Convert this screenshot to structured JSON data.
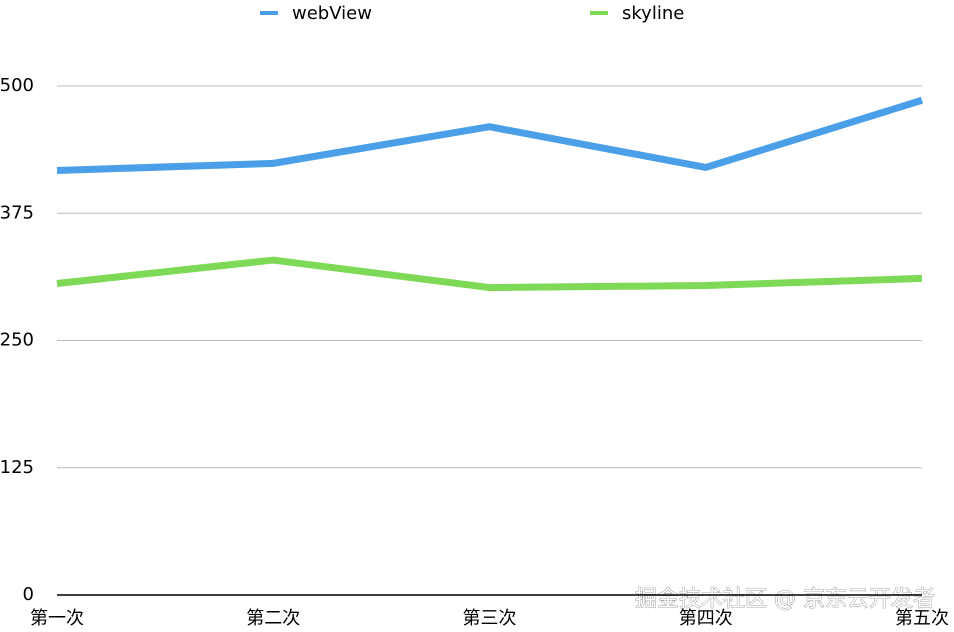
{
  "chart_data": {
    "type": "line",
    "categories": [
      "第一次",
      "第二次",
      "第三次",
      "第四次",
      "第五次"
    ],
    "series": [
      {
        "name": "webView",
        "color": "#4a9fe8",
        "values": [
          417,
          424,
          460,
          420,
          486
        ]
      },
      {
        "name": "skyline",
        "color": "#7ed957",
        "values": [
          306,
          329,
          302,
          304,
          311
        ]
      }
    ],
    "ylim": [
      0,
      500
    ],
    "yticks": [
      0,
      125,
      250,
      375,
      500
    ],
    "grid": true,
    "legend": "top",
    "watermark": "掘金技术社区 @ 京东云开发者"
  }
}
